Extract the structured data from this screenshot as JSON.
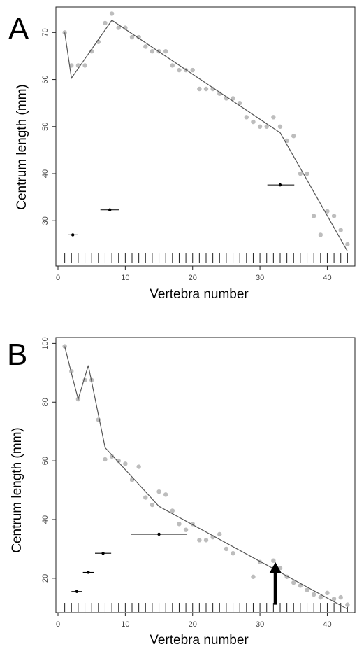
{
  "chart_data": [
    {
      "panel_label": "A",
      "type": "scatter",
      "xlabel": "Vertebra number",
      "ylabel": "Centrum length (mm)",
      "xlim": [
        0,
        44
      ],
      "ylim": [
        22,
        76
      ],
      "xticks": [
        0,
        10,
        20,
        30,
        40
      ],
      "yticks": [
        30,
        40,
        50,
        60,
        70
      ],
      "series": [
        {
          "kind": "points",
          "color": "#bdbdbd",
          "x": [
            1,
            2,
            3,
            4,
            5,
            6,
            7,
            8,
            9,
            10,
            11,
            12,
            13,
            14,
            15,
            16,
            17,
            18,
            19,
            20,
            21,
            22,
            23,
            24,
            25,
            26,
            27,
            28,
            29,
            30,
            31,
            32,
            33,
            34,
            35,
            36,
            37,
            38,
            39,
            40,
            41,
            42,
            43
          ],
          "y": [
            70,
            63,
            63,
            63,
            66,
            68,
            72,
            74,
            71,
            71,
            69,
            69,
            67,
            66,
            66,
            66,
            63,
            62,
            62,
            62,
            58,
            58,
            58,
            57,
            56,
            56,
            55,
            52,
            51,
            50,
            50,
            52,
            50,
            47,
            48,
            40,
            40,
            31,
            27,
            32,
            31,
            28,
            25
          ]
        },
        {
          "kind": "line",
          "color": "#555555",
          "x": [
            1,
            2,
            8,
            33,
            43
          ],
          "y": [
            70,
            60.3,
            72.6,
            48.7,
            23.5
          ]
        },
        {
          "kind": "breakpoints",
          "color": "#000000",
          "points": [
            {
              "x": 2.2,
              "y": 27,
              "xmin": 1.5,
              "xmax": 2.9
            },
            {
              "x": 7.7,
              "y": 32.3,
              "xmin": 6.3,
              "xmax": 9.1
            },
            {
              "x": 33,
              "y": 37.6,
              "xmin": 31.1,
              "xmax": 35.1
            }
          ]
        }
      ],
      "rug_x": [
        1,
        2,
        3,
        4,
        5,
        6,
        7,
        8,
        9,
        10,
        11,
        12,
        13,
        14,
        15,
        16,
        17,
        18,
        19,
        20,
        21,
        22,
        23,
        24,
        25,
        26,
        27,
        28,
        29,
        30,
        31,
        32,
        33,
        34,
        35,
        36,
        37,
        38,
        39,
        40,
        41,
        42,
        43
      ]
    },
    {
      "panel_label": "B",
      "type": "scatter",
      "xlabel": "Vertebra number",
      "ylabel": "Centrum length (mm)",
      "xlim": [
        0,
        44
      ],
      "ylim": [
        9,
        102
      ],
      "xticks": [
        0,
        10,
        20,
        30,
        40
      ],
      "yticks": [
        20,
        40,
        60,
        80,
        100
      ],
      "series": [
        {
          "kind": "points",
          "color": "#bdbdbd",
          "x": [
            1,
            2,
            3,
            4,
            5,
            6,
            7,
            8,
            9,
            10,
            11,
            12,
            13,
            14,
            15,
            16,
            17,
            18,
            19,
            20,
            21,
            22,
            23,
            24,
            25,
            26,
            29,
            30,
            32,
            33,
            34,
            35,
            36,
            37,
            38,
            39,
            40,
            41,
            42,
            43
          ],
          "y": [
            99,
            90.5,
            81,
            87.5,
            87.5,
            74,
            60.5,
            61.5,
            60,
            59,
            53.5,
            58,
            47.5,
            45,
            49.5,
            48.5,
            43,
            38.5,
            36.5,
            38.5,
            33,
            33,
            34,
            35,
            30,
            28.5,
            20.5,
            25.5,
            26,
            23.5,
            20.5,
            18.5,
            17.5,
            16,
            14.5,
            13.5,
            15,
            13,
            13.5,
            11
          ]
        },
        {
          "kind": "line",
          "color": "#555555",
          "x": [
            1,
            2.2,
            3,
            4.5,
            7,
            15,
            43
          ],
          "y": [
            99,
            88,
            81,
            92.5,
            64.5,
            44.5,
            9.5
          ]
        },
        {
          "kind": "breakpoints",
          "color": "#000000",
          "points": [
            {
              "x": 2.8,
              "y": 15.5,
              "xmin": 2.0,
              "xmax": 3.6
            },
            {
              "x": 4.5,
              "y": 22,
              "xmin": 3.7,
              "xmax": 5.3
            },
            {
              "x": 6.7,
              "y": 28.5,
              "xmin": 5.5,
              "xmax": 7.9
            },
            {
              "x": 15,
              "y": 35,
              "xmin": 10.8,
              "xmax": 19.2
            }
          ]
        }
      ],
      "arrow": {
        "x": 32.3,
        "y_from": 11,
        "y_to": 24.5
      },
      "rug_x": [
        1,
        2,
        3,
        4,
        5,
        6,
        7,
        8,
        9,
        10,
        11,
        12,
        13,
        14,
        15,
        16,
        17,
        18,
        19,
        20,
        21,
        22,
        23,
        24,
        25,
        26,
        27,
        28,
        29,
        30,
        31,
        32,
        33,
        34,
        35,
        36,
        37,
        38,
        39,
        40,
        41,
        42,
        43
      ]
    }
  ]
}
